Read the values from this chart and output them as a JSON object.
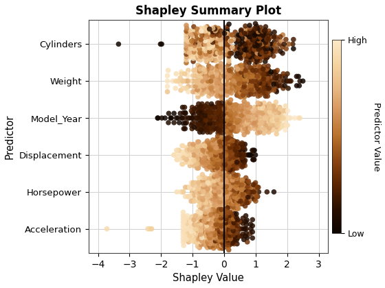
{
  "title": "Shapley Summary Plot",
  "xlabel": "Shapley Value",
  "ylabel": "Predictor",
  "predictors": [
    "Cylinders",
    "Weight",
    "Model_Year",
    "Displacement",
    "Horsepower",
    "Acceleration"
  ],
  "xlim": [
    -4.3,
    3.3
  ],
  "xticks": [
    -4,
    -3,
    -2,
    -1,
    0,
    1,
    2,
    3
  ],
  "n_points": 392,
  "cbar_label": "Predictor Value",
  "cbar_high": "High",
  "cbar_low": "Low",
  "background_color": "#ffffff",
  "grid_color": "#d0d0d0",
  "point_size": 30,
  "point_alpha": 0.85,
  "cmap_colors": [
    "#0d0500",
    "#2a0f00",
    "#5c2500",
    "#8b4513",
    "#b8712a",
    "#d4935a",
    "#e8b882",
    "#f5d4a0",
    "#fce8c8"
  ]
}
